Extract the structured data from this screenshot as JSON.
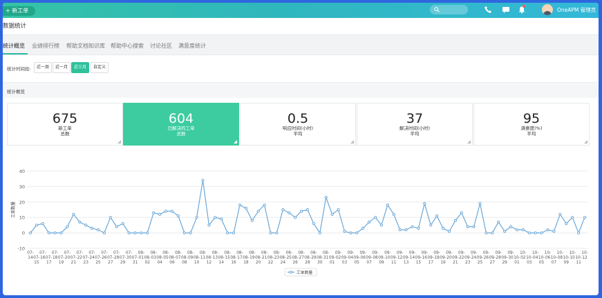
{
  "header": {
    "new_ticket": "新工单",
    "user_name": "OneAPM 管理员",
    "icons": [
      "search-icon",
      "phone-icon",
      "chat-icon",
      "bell-icon",
      "avatar"
    ]
  },
  "page_title": "数据统计",
  "tabs": [
    {
      "label": "统计概览",
      "active": true
    },
    {
      "label": "业绩排行榜",
      "active": false
    },
    {
      "label": "帮助文档知识库",
      "active": false
    },
    {
      "label": "帮助中心搜索",
      "active": false
    },
    {
      "label": "讨论社区",
      "active": false
    },
    {
      "label": "满意度统计",
      "active": false
    }
  ],
  "filter": {
    "label": "统计时间段:",
    "options": [
      {
        "label": "近一周",
        "active": false
      },
      {
        "label": "近一月",
        "active": false
      },
      {
        "label": "近三月",
        "active": true
      },
      {
        "label": "自定义",
        "active": false
      }
    ]
  },
  "section_title": "统计概览",
  "cards": [
    {
      "value": "675",
      "line1": "新工单",
      "line2": "总数",
      "highlight": false
    },
    {
      "value": "604",
      "line1": "已解决的工单",
      "line2": "总数",
      "highlight": true
    },
    {
      "value": "0.5",
      "line1": "响应时间(小时)",
      "line2": "平均",
      "highlight": false
    },
    {
      "value": "37",
      "line1": "解决时间(小时)",
      "line2": "平均",
      "highlight": false
    },
    {
      "value": "95",
      "line1": "满意度(%)",
      "line2": "平均",
      "highlight": false
    }
  ],
  "colors": {
    "accent": "#3dcc9f",
    "line": "#6aa7d8"
  },
  "chart_data": {
    "type": "line",
    "ylabel": "工单数量",
    "xlabel": "",
    "ylim": [
      -10,
      40
    ],
    "yticks": [
      -10,
      0,
      10,
      20,
      30,
      40
    ],
    "grid": "horizontal",
    "legend": "bottom-center",
    "series": [
      {
        "name": "工单数量",
        "values": [
          0,
          5,
          6,
          0,
          0,
          0,
          4,
          12,
          7,
          5,
          3,
          2,
          0,
          10,
          4,
          6,
          0,
          0,
          0,
          0,
          13,
          12,
          14,
          14,
          11,
          0,
          0,
          10,
          34,
          5,
          10,
          9,
          0,
          0,
          18,
          16,
          8,
          14,
          18,
          0,
          0,
          15,
          13,
          10,
          14,
          15,
          6,
          0,
          23,
          12,
          15,
          1,
          0,
          0,
          3,
          7,
          10,
          5,
          18,
          12,
          2,
          2,
          4,
          3,
          19,
          5,
          11,
          3,
          1,
          8,
          13,
          4,
          4,
          19,
          0,
          0,
          7,
          1,
          4,
          2,
          2,
          0,
          0,
          0,
          2,
          1,
          12,
          6,
          10,
          0,
          10
        ]
      }
    ],
    "x": [
      "07-14",
      "07-15",
      "07-16",
      "07-17",
      "07-18",
      "07-19",
      "07-20",
      "07-21",
      "07-22",
      "07-23",
      "07-24",
      "07-25",
      "07-26",
      "07-27",
      "07-28",
      "07-29",
      "07-30",
      "07-31",
      "08-01",
      "08-02",
      "08-03",
      "08-04",
      "08-05",
      "08-06",
      "08-07",
      "08-08",
      "08-09",
      "08-10",
      "08-11",
      "08-12",
      "08-13",
      "08-14",
      "08-15",
      "08-16",
      "08-17",
      "08-18",
      "08-19",
      "08-20",
      "08-21",
      "08-22",
      "08-23",
      "08-24",
      "08-25",
      "08-26",
      "08-27",
      "08-28",
      "08-29",
      "08-30",
      "08-31",
      "09-01",
      "09-02",
      "09-03",
      "09-04",
      "09-05",
      "09-06",
      "09-07",
      "09-08",
      "09-09",
      "09-10",
      "09-11",
      "09-12",
      "09-13",
      "09-14",
      "09-15",
      "09-16",
      "09-17",
      "09-18",
      "09-19",
      "09-20",
      "09-21",
      "09-22",
      "09-23",
      "09-24",
      "09-25",
      "09-26",
      "09-27",
      "09-28",
      "09-29",
      "09-30",
      "10-01",
      "10-02",
      "10-03",
      "10-04",
      "10-05",
      "10-06",
      "10-07",
      "10-08",
      "10-09",
      "10-10",
      "10-11",
      "10-12"
    ]
  }
}
